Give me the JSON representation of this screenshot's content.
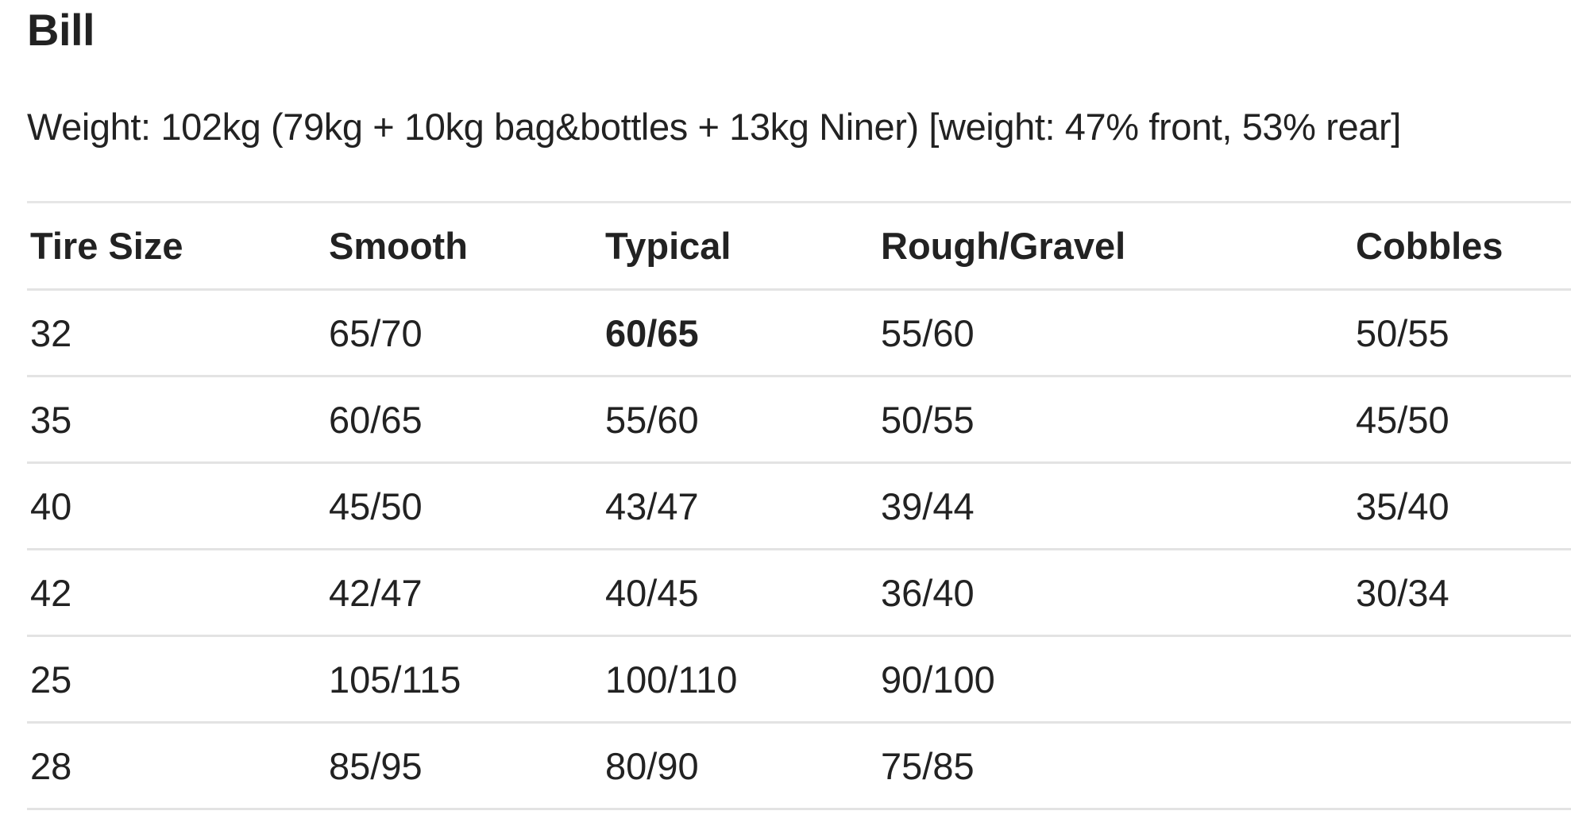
{
  "title": "Bill",
  "weight_line": "Weight: 102kg (79kg + 10kg bag&bottles + 13kg Niner) [weight: 47% front, 53% rear]",
  "table": {
    "headers": [
      "Tire Size",
      "Smooth",
      "Typical",
      "Rough/Gravel",
      "Cobbles"
    ],
    "rows": [
      [
        "32",
        "65/70",
        "60/65",
        "55/60",
        "50/55"
      ],
      [
        "35",
        "60/65",
        "55/60",
        "50/55",
        "45/50"
      ],
      [
        "40",
        "45/50",
        "43/47",
        "39/44",
        "35/40"
      ],
      [
        "42",
        "42/47",
        "40/45",
        "36/40",
        "30/34"
      ],
      [
        "25",
        "105/115",
        "100/110",
        "90/100",
        ""
      ],
      [
        "28",
        "85/95",
        "80/90",
        "75/85",
        ""
      ]
    ],
    "emphasized_cell": {
      "row": 0,
      "col": 2
    }
  },
  "colors": {
    "text": "#222222",
    "row_divider": "#e3e3e3",
    "background": "#ffffff"
  }
}
